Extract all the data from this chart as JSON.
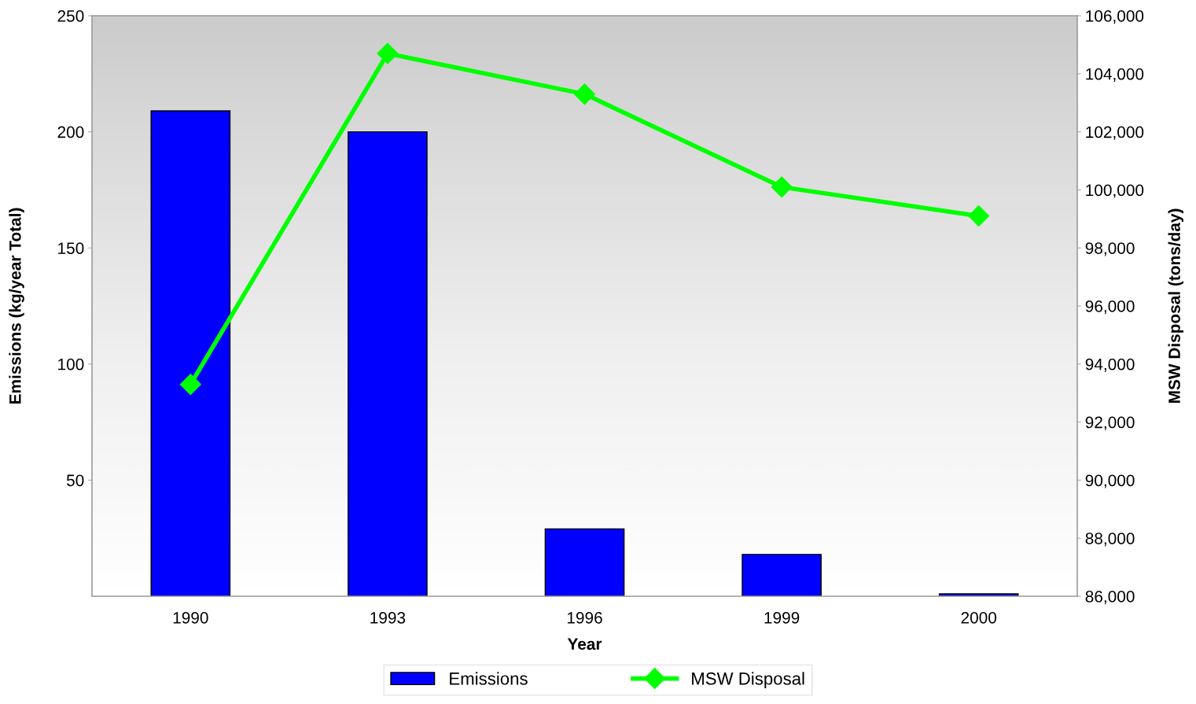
{
  "chart_data": {
    "type": "bar",
    "xlabel": "Year",
    "ylabel": "Emissions (kg/year Total)",
    "y2label": "MSW Disposal (tons/day)",
    "categories": [
      "1990",
      "1993",
      "1996",
      "1999",
      "2000"
    ],
    "series": [
      {
        "name": "Emissions",
        "color": "#0000ff",
        "values": [
          209,
          200,
          29,
          18,
          1
        ]
      },
      {
        "name": "MSW Disposal",
        "type": "line",
        "axis": "y2",
        "color": "#00ff00",
        "marker": "diamond",
        "values": [
          93300,
          104700,
          103300,
          100100,
          99100
        ]
      }
    ],
    "ylim": [
      0,
      250
    ],
    "yticks": [
      50,
      100,
      150,
      200,
      250
    ],
    "y2lim": [
      86000,
      106000
    ],
    "y2ticks": [
      {
        "value": 86000,
        "label": "86,000"
      },
      {
        "value": 88000,
        "label": "88,000"
      },
      {
        "value": 90000,
        "label": "90,000"
      },
      {
        "value": 92000,
        "label": "92,000"
      },
      {
        "value": 94000,
        "label": "94,000"
      },
      {
        "value": 96000,
        "label": "96,000"
      },
      {
        "value": 98000,
        "label": "98,000"
      },
      {
        "value": 100000,
        "label": "100,000"
      },
      {
        "value": 102000,
        "label": "102,000"
      },
      {
        "value": 104000,
        "label": "104,000"
      },
      {
        "value": 106000,
        "label": "106,000"
      }
    ],
    "grid": false,
    "legend": "bottom"
  }
}
